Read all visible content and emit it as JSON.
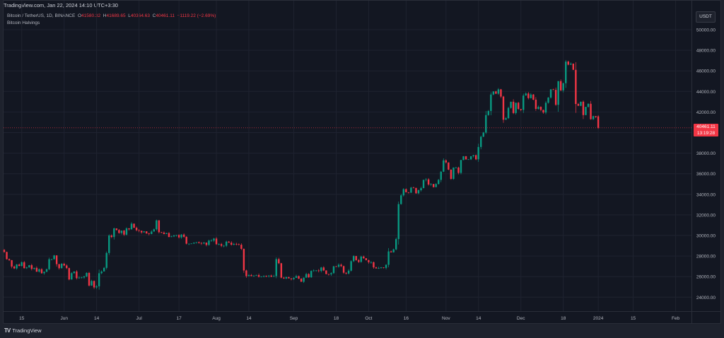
{
  "header": {
    "attribution": "TradingView.com, Jan 22, 2024 14:10 UTC+3:30",
    "symbol": "Bitcoin / TetherUS, 1D, BINANCE",
    "ohlc": {
      "o_label": "O",
      "o": "41580.32",
      "h_label": "H",
      "h": "41689.65",
      "l_label": "L",
      "l": "40364.63",
      "c_label": "C",
      "c": "40461.11",
      "change": "−1119.22 (−2.69%)"
    },
    "indicator": "Bitcoin Halvings"
  },
  "price_scale": {
    "currency": "USDT",
    "current_price": "40461.11",
    "countdown": "13:19:28"
  },
  "branding": {
    "logo_text": "TradingView",
    "logo_icon": "tradingview-logo-icon"
  },
  "colors": {
    "background": "#131722",
    "frame": "#1e222d",
    "grid": "#1f2330",
    "up": "#089981",
    "down": "#f23645",
    "text": "#b2b5be"
  },
  "chart_data": {
    "type": "candlestick",
    "title": "Bitcoin / TetherUS, 1D, BINANCE",
    "xlabel": "",
    "ylabel": "USDT",
    "ylim": [
      23000,
      51000
    ],
    "grid": true,
    "y_ticks": [
      "50000.00",
      "48000.00",
      "46000.00",
      "44000.00",
      "42000.00",
      "40000.00",
      "38000.00",
      "36000.00",
      "34000.00",
      "32000.00",
      "30000.00",
      "28000.00",
      "26000.00",
      "24000.00"
    ],
    "x_ticks": [
      {
        "label": "15",
        "date": "2023-05-15"
      },
      {
        "label": "Jun",
        "date": "2023-06-01"
      },
      {
        "label": "14",
        "date": "2023-06-14"
      },
      {
        "label": "Jul",
        "date": "2023-07-01"
      },
      {
        "label": "17",
        "date": "2023-07-17"
      },
      {
        "label": "Aug",
        "date": "2023-08-01"
      },
      {
        "label": "14",
        "date": "2023-08-14"
      },
      {
        "label": "Sep",
        "date": "2023-09-01"
      },
      {
        "label": "18",
        "date": "2023-09-18"
      },
      {
        "label": "Oct",
        "date": "2023-10-01"
      },
      {
        "label": "16",
        "date": "2023-10-16"
      },
      {
        "label": "Nov",
        "date": "2023-11-01"
      },
      {
        "label": "14",
        "date": "2023-11-14"
      },
      {
        "label": "Dec",
        "date": "2023-12-01"
      },
      {
        "label": "18",
        "date": "2023-12-18"
      },
      {
        "label": "2024",
        "date": "2024-01-01"
      },
      {
        "label": "15",
        "date": "2024-01-15"
      },
      {
        "label": "Feb",
        "date": "2024-02-01"
      }
    ],
    "start_date": "2023-05-08",
    "closes": [
      28400,
      27700,
      27600,
      26980,
      26800,
      27180,
      27030,
      27400,
      26820,
      26890,
      27110,
      26750,
      26850,
      26480,
      26720,
      26330,
      26470,
      26720,
      27690,
      27700,
      28060,
      27210,
      26820,
      27250,
      27080,
      26830,
      25720,
      26340,
      26500,
      25850,
      25900,
      25920,
      26020,
      26360,
      25130,
      25580,
      24950,
      25060,
      26330,
      26500,
      26850,
      28300,
      30000,
      29850,
      30690,
      30530,
      30240,
      30470,
      30080,
      30690,
      30600,
      31150,
      30750,
      30510,
      30450,
      30300,
      30400,
      30190,
      30140,
      30380,
      30600,
      31470,
      30320,
      30280,
      30140,
      30230,
      29850,
      29910,
      30000,
      30050,
      29810,
      30090,
      29870,
      29200,
      29200,
      29220,
      29300,
      29350,
      29270,
      29220,
      29300,
      29080,
      29500,
      29500,
      29700,
      29150,
      29160,
      29000,
      29000,
      29400,
      29300,
      29100,
      29180,
      29150,
      29100,
      28700,
      26600,
      26050,
      26150,
      26060,
      26100,
      26150,
      25990,
      26020,
      26080,
      26050,
      26100,
      26000,
      26050,
      27700,
      27300,
      25900,
      25820,
      25950,
      25830,
      25750,
      25880,
      26050,
      25800,
      25500,
      25900,
      26250,
      25930,
      26550,
      26600,
      26600,
      26550,
      26890,
      26600,
      26250,
      26220,
      26340,
      27000,
      26960,
      27160,
      27020,
      26380,
      26300,
      26580,
      27500,
      28000,
      27600,
      27430,
      27950,
      27790,
      27600,
      27400,
      27400,
      26900,
      26800,
      26830,
      26900,
      26850,
      27150,
      28450,
      28360,
      28650,
      29650,
      33050,
      33900,
      34500,
      34200,
      34150,
      34650,
      34620,
      34100,
      34400,
      34600,
      35400,
      35450,
      34950,
      35000,
      34700,
      35000,
      35400,
      36200,
      37300,
      37100,
      36400,
      35500,
      36600,
      36600,
      36080,
      37330,
      37700,
      37400,
      37400,
      37700,
      37800,
      37400,
      38600,
      39600,
      40000,
      41700,
      42100,
      43700,
      44000,
      43780,
      44200,
      43500,
      41250,
      41400,
      42400,
      43000,
      41900,
      42900,
      42300,
      42200,
      43600,
      43800,
      43350,
      43700,
      43200,
      42300,
      42500,
      42200,
      41950,
      42900,
      43400,
      44200,
      44150,
      42700,
      45000,
      44100,
      44800,
      46900,
      46600,
      46700,
      46100,
      42780,
      42600,
      43000,
      41700,
      42500,
      42800,
      41300,
      41600,
      41500,
      40461.11
    ],
    "notes": "Daily candlesticks approximated from the chart; last candle O41580.32 H41689.65 L40364.63 C40461.11"
  }
}
